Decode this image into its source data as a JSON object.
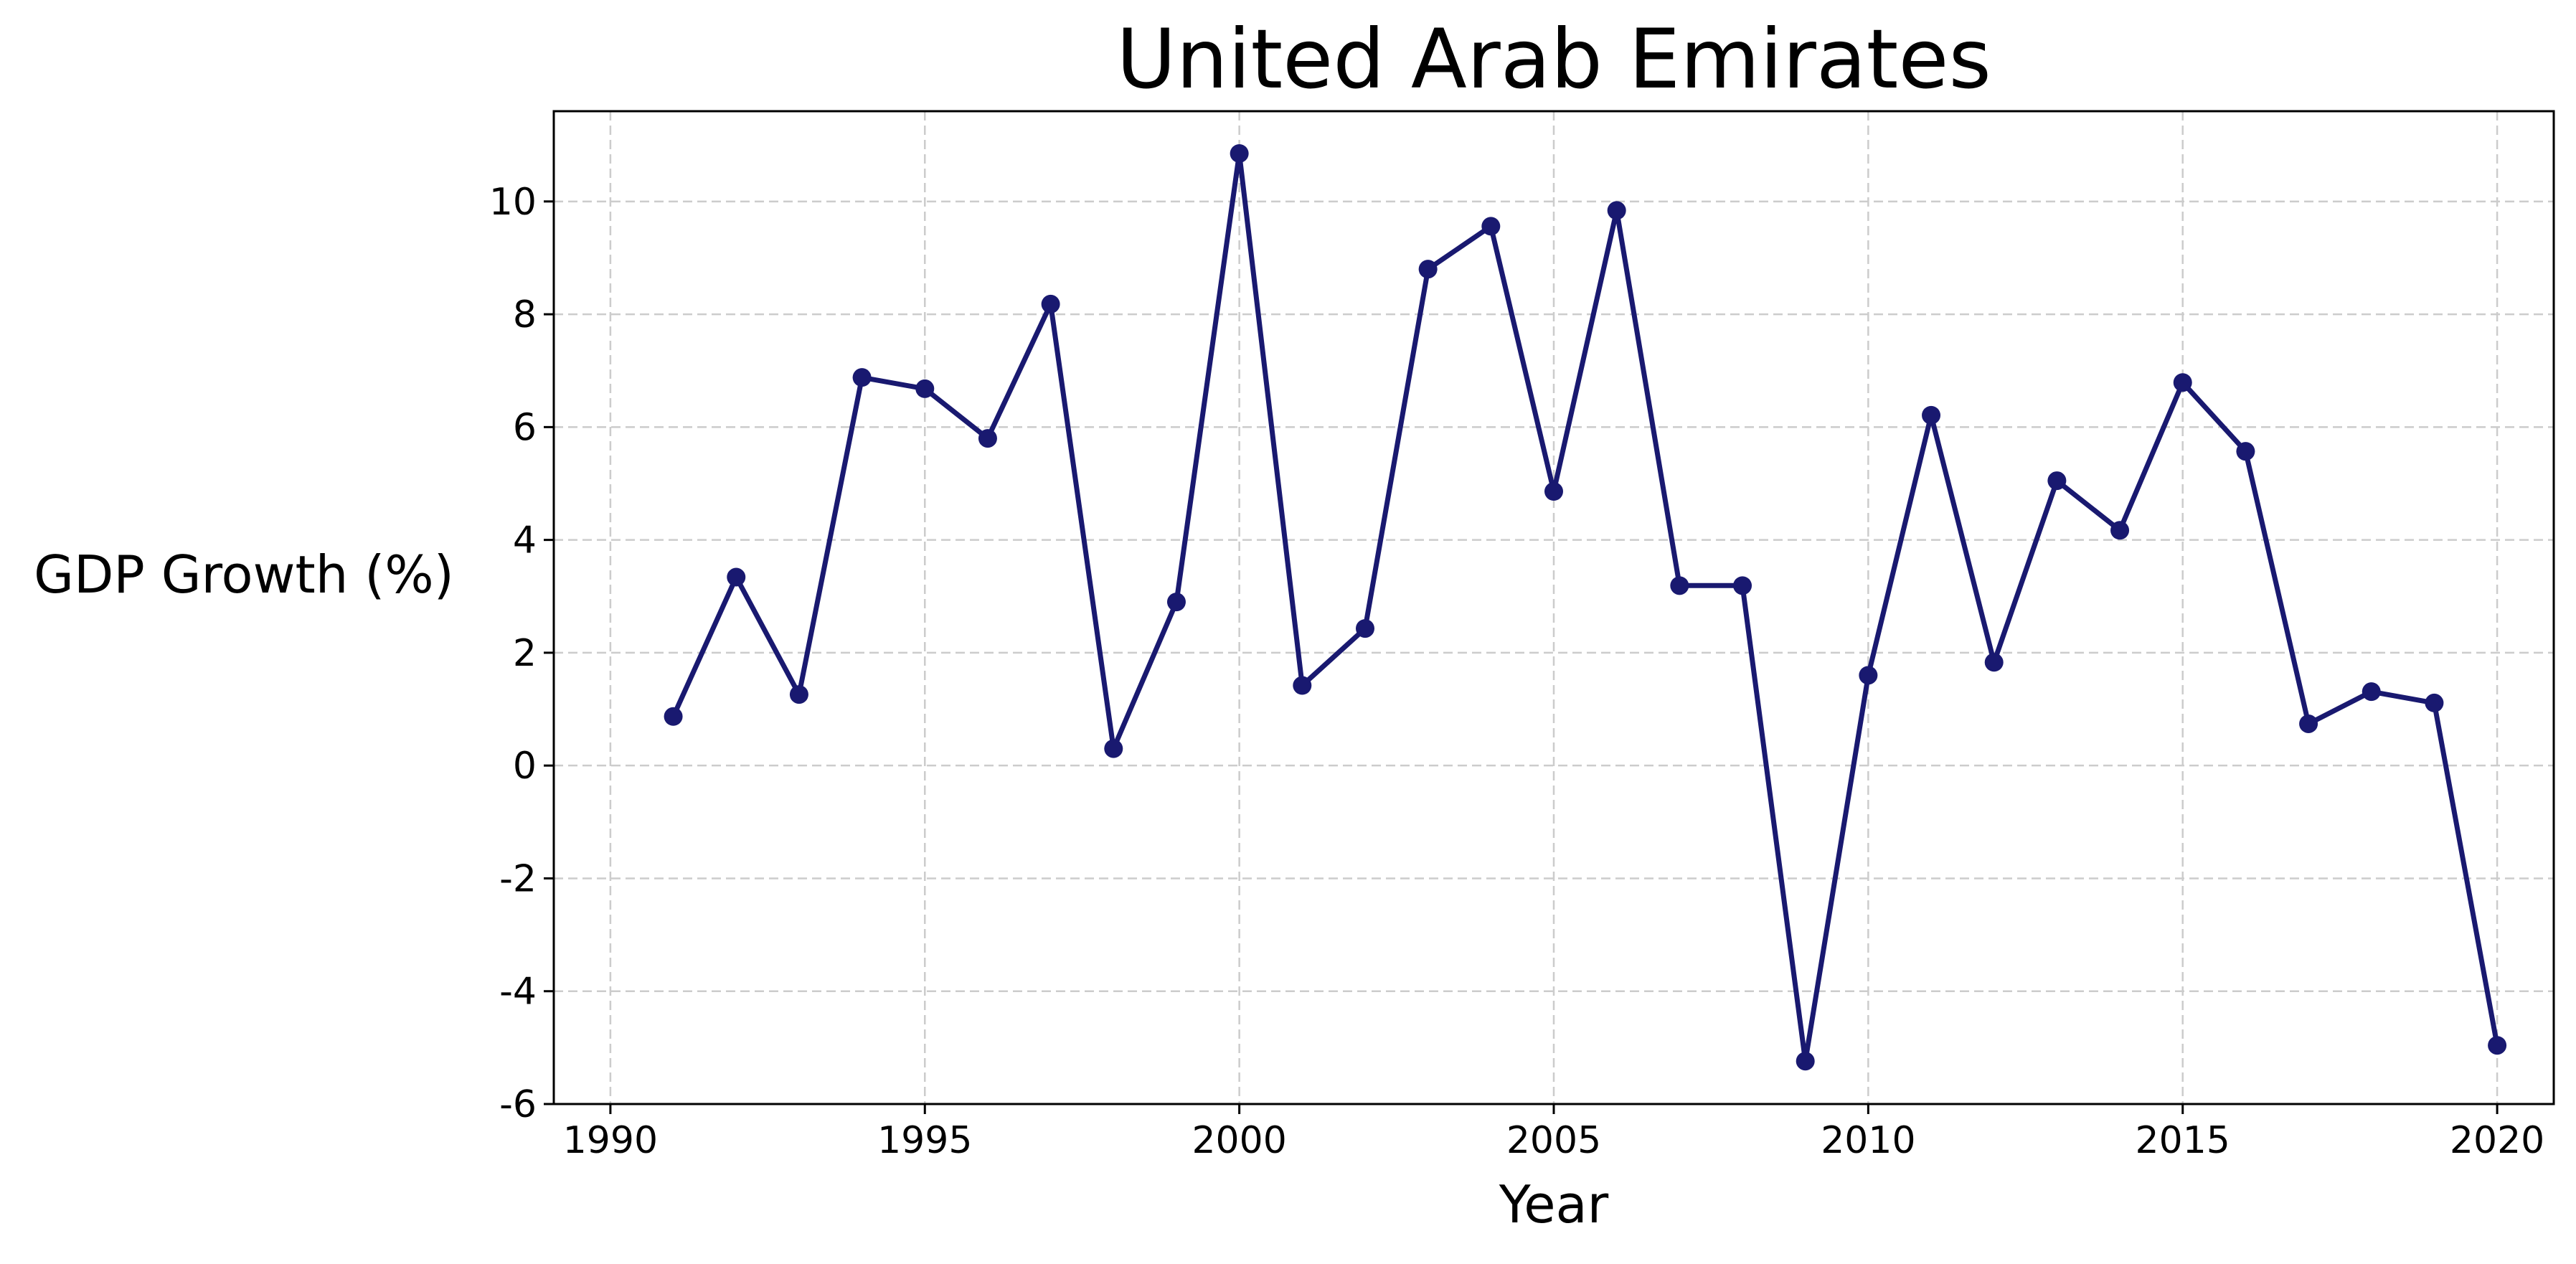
{
  "colors": {
    "series": "#191970",
    "grid": "#cccccc",
    "background": "#ffffff"
  },
  "chart_data": {
    "type": "line",
    "title": "United Arab Emirates",
    "xlabel": "Year",
    "ylabel": "GDP Growth (%)",
    "xlim": [
      1989.1,
      2020.9
    ],
    "ylim": [
      -6,
      11.6
    ],
    "xticks": [
      1990,
      1995,
      2000,
      2005,
      2010,
      2015,
      2020
    ],
    "yticks": [
      -6,
      -4,
      -2,
      0,
      2,
      4,
      6,
      8,
      10
    ],
    "grid": true,
    "marker": "circle",
    "x": [
      1991,
      1992,
      1993,
      1994,
      1995,
      1996,
      1997,
      1998,
      1999,
      2000,
      2001,
      2002,
      2003,
      2004,
      2005,
      2006,
      2007,
      2008,
      2009,
      2010,
      2011,
      2012,
      2013,
      2014,
      2015,
      2016,
      2017,
      2018,
      2019,
      2020
    ],
    "series": [
      {
        "values": [
          0.87,
          3.34,
          1.26,
          6.88,
          6.68,
          5.8,
          8.18,
          0.3,
          2.9,
          10.85,
          1.42,
          2.43,
          8.8,
          9.56,
          4.86,
          9.84,
          3.19,
          3.19,
          -5.24,
          1.6,
          6.21,
          1.83,
          5.05,
          4.17,
          6.79,
          5.57,
          0.74,
          1.31,
          1.11,
          -4.96
        ]
      }
    ]
  }
}
